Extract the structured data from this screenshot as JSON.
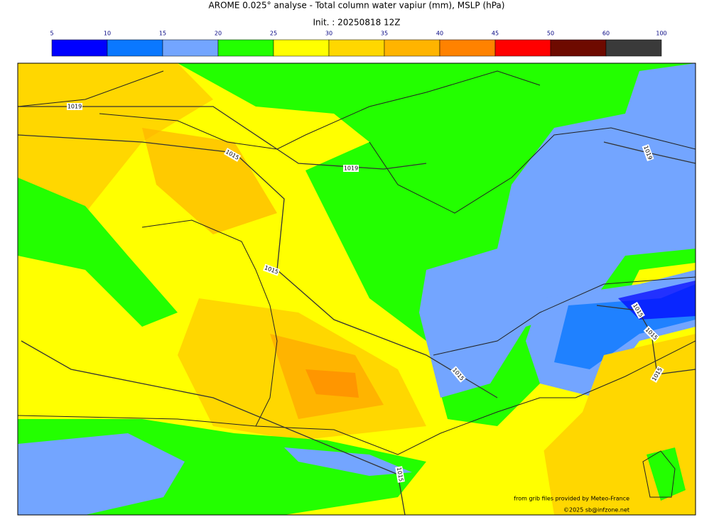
{
  "header": {
    "title": "AROME 0.025° analyse - Total column water vapiur (mm), MSLP (hPa)",
    "init": "Init. : 20250818 12Z"
  },
  "colorbar": {
    "ticks": [
      5,
      10,
      15,
      20,
      25,
      30,
      35,
      40,
      45,
      50,
      60,
      100
    ],
    "colors": [
      "#0000ff",
      "#0a78ff",
      "#73a5ff",
      "#23ff00",
      "#ffff00",
      "#ffd700",
      "#ffb400",
      "#ff8200",
      "#ff0000",
      "#6e0a00",
      "#3a3a3a"
    ]
  },
  "isobar_labels": [
    "1019",
    "1015",
    "1019",
    "1015",
    "1019",
    "1015",
    "1015",
    "1015",
    "1015",
    "1015"
  ],
  "credits": {
    "source": "from grib files provided by Meteo-France",
    "copyright": "©2025 sb@infzone.net"
  }
}
